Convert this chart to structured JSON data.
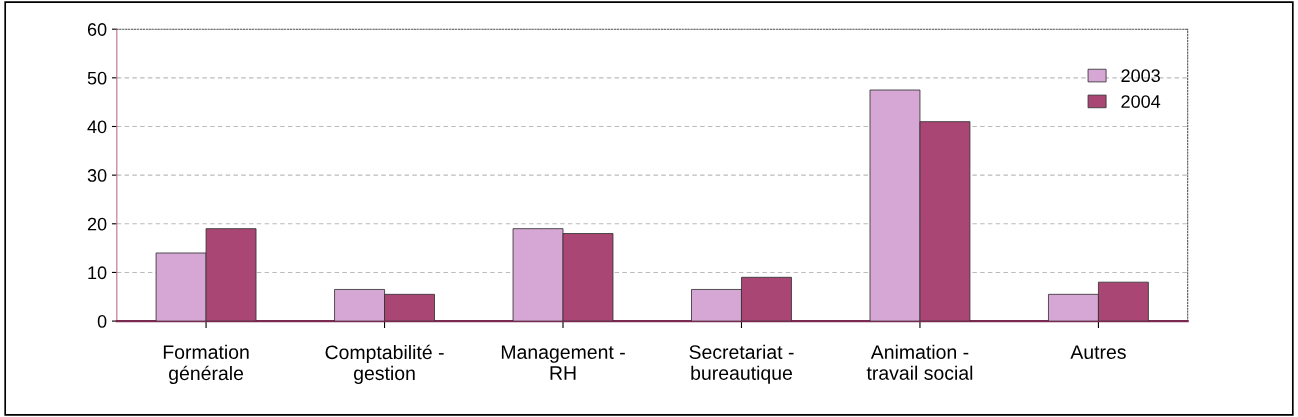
{
  "chart_data": {
    "type": "bar",
    "categories": [
      "Formation\ngénérale",
      "Comptabilité -\ngestion",
      "Management -\nRH",
      "Secretariat -\nbureautique",
      "Animation -\ntravail social",
      "Autres"
    ],
    "series": [
      {
        "name": "2003",
        "color": "#d6a6d4",
        "values": [
          14,
          6.5,
          19,
          6.5,
          47.5,
          5.5
        ]
      },
      {
        "name": "2004",
        "color": "#a94674",
        "values": [
          19,
          5.5,
          18,
          9,
          41,
          8
        ]
      }
    ],
    "ylim": [
      0,
      60
    ],
    "yticks": [
      0,
      10,
      20,
      30,
      40,
      50,
      60
    ],
    "grid": "y",
    "legend": "top right"
  }
}
